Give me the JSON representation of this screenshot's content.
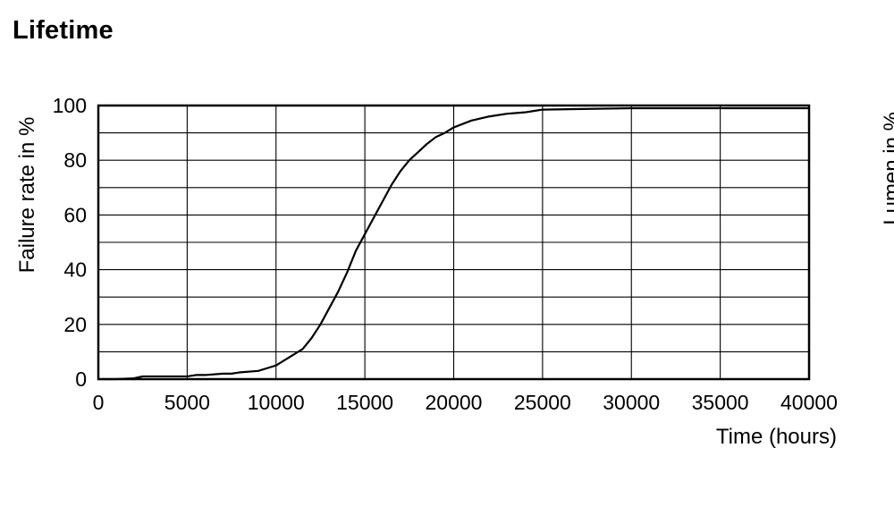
{
  "page": {
    "title": "Lifetime"
  },
  "chart_data": {
    "type": "line",
    "title": "",
    "xlabel": "Time (hours)",
    "ylabel": "Failure rate in %",
    "xlim": [
      0,
      40000
    ],
    "ylim": [
      0,
      100
    ],
    "xticks": [
      "0",
      "5000",
      "10000",
      "15000",
      "20000",
      "25000",
      "30000",
      "35000",
      "40000"
    ],
    "yticks": [
      "0",
      "20",
      "40",
      "60",
      "80",
      "100"
    ],
    "grid": true,
    "line_color": "#000000",
    "series": [
      {
        "x": [
          0,
          1000,
          2000,
          2500,
          3000,
          4000,
          5000,
          5500,
          6000,
          7000,
          7500,
          8000,
          9000,
          9500,
          10000,
          10500,
          11000,
          11500,
          12000,
          12500,
          13000,
          13500,
          14000,
          14500,
          15000,
          15500,
          16000,
          16500,
          17000,
          17500,
          18000,
          18500,
          19000,
          19500,
          20000,
          21000,
          22000,
          23000,
          24000,
          24500,
          25000,
          30000,
          35000,
          40000
        ],
        "y": [
          0,
          0,
          0.3,
          1,
          1,
          1,
          1,
          1.5,
          1.5,
          2,
          2,
          2.5,
          3,
          4,
          5,
          7,
          9,
          11,
          15,
          20,
          26,
          32,
          39,
          47,
          53,
          59,
          65,
          71,
          76,
          80,
          83,
          86,
          88.5,
          90,
          92,
          94.5,
          96,
          97,
          97.5,
          98,
          98.5,
          99,
          99,
          99
        ]
      }
    ]
  },
  "clipped_text": "Lumen in %"
}
